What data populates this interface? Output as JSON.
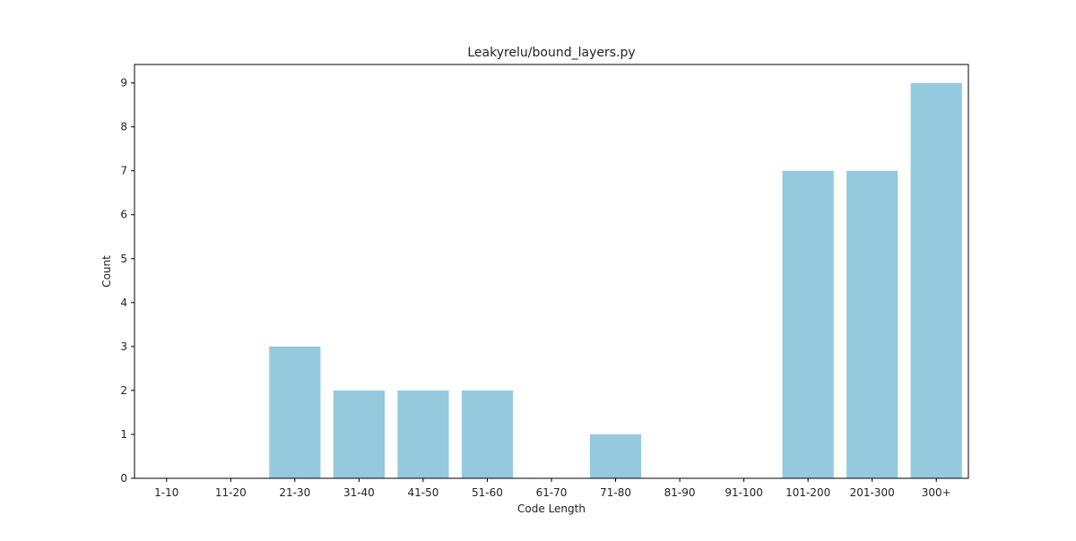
{
  "chart_data": {
    "type": "bar",
    "title": "Leakyrelu/bound_layers.py",
    "xlabel": "Code Length",
    "ylabel": "Count",
    "categories": [
      "1-10",
      "11-20",
      "21-30",
      "31-40",
      "41-50",
      "51-60",
      "61-70",
      "71-80",
      "81-90",
      "91-100",
      "101-200",
      "201-300",
      "300+"
    ],
    "values": [
      0,
      0,
      3,
      2,
      2,
      2,
      0,
      1,
      0,
      0,
      7,
      7,
      9
    ],
    "ylim": [
      0,
      9.42
    ],
    "yticks": [
      0,
      1,
      2,
      3,
      4,
      5,
      6,
      7,
      8,
      9
    ],
    "grid": false,
    "legend": "none",
    "bar_color": "#95c9de"
  }
}
